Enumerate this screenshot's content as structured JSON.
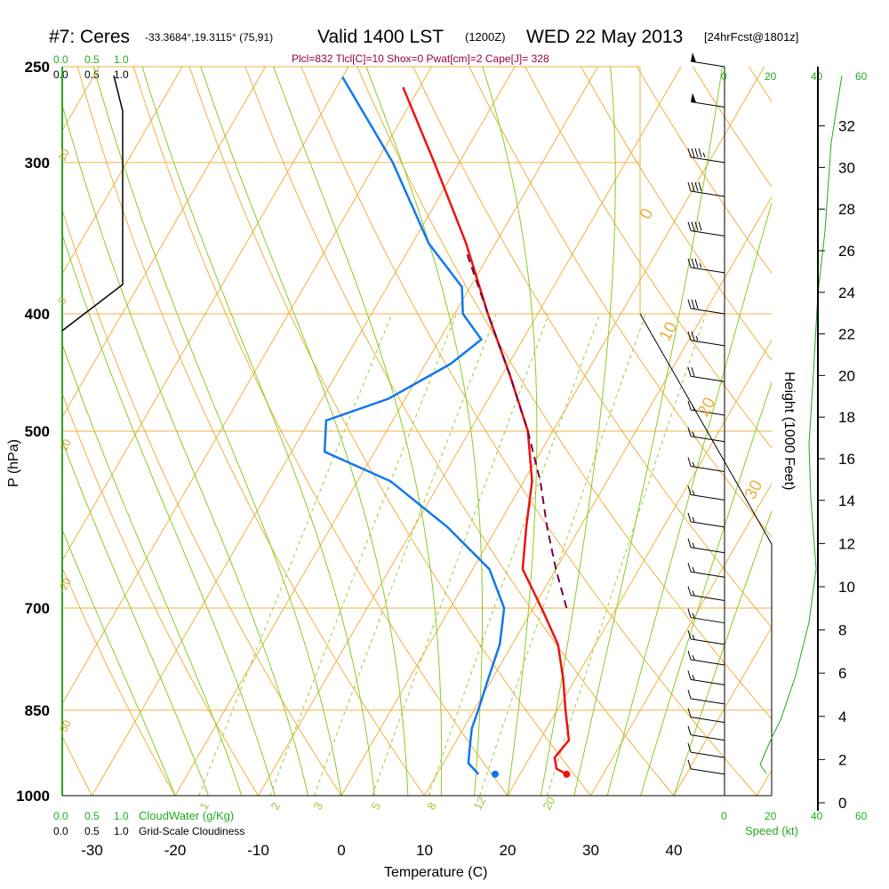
{
  "header": {
    "station": "#7: Ceres",
    "coords": "-33.3684°,19.3115° (75,91)",
    "valid": "Valid 1400 LST",
    "utc": "(1200Z)",
    "date": "WED 22 May 2013",
    "forecast": "[24hrFcst@1801z]",
    "params": "Plcl=832 Tlcl[C]=10 Shox=0 Pwat[cm]=2 Cape[J]= 328"
  },
  "cloud_scale": {
    "top_green": [
      "0.0",
      "0.5",
      "1.0"
    ],
    "top_black": [
      "0.0",
      "0.5",
      "1.0"
    ],
    "bottom_green": [
      "0.0",
      "0.5",
      "1.0"
    ],
    "bottom_black": [
      "0.0",
      "0.5",
      "1.0"
    ],
    "cloudwater_label": "CloudWater (g/Kg)",
    "cloudiness_label": "Grid-Scale Cloudiness"
  },
  "wind_speed_scale": {
    "ticks": [
      "0",
      "20",
      "40",
      "60"
    ],
    "label": "Speed (kt)"
  },
  "axes": {
    "xlabel": "Temperature (C)",
    "ylabel": "P (hPa)",
    "y2label": "Height (1000 Feet)",
    "x_ticks": [
      "-30",
      "-20",
      "-10",
      "0",
      "10",
      "20",
      "30",
      "40"
    ],
    "p_ticks": [
      "250",
      "300",
      "400",
      "500",
      "700",
      "850",
      "1000"
    ],
    "height_ticks": [
      "0",
      "2",
      "4",
      "6",
      "8",
      "10",
      "12",
      "14",
      "16",
      "18",
      "20",
      "22",
      "24",
      "26",
      "28",
      "30",
      "32"
    ]
  },
  "isotherm_labels": [
    "0",
    "10",
    "20",
    "30",
    "10",
    "0",
    "-10",
    "-20",
    "-30"
  ],
  "mixing_ratio_labels": [
    "1",
    "2",
    "3",
    "5",
    "8",
    "12",
    "20"
  ],
  "colors": {
    "temperature": "#ee1111",
    "dewpoint": "#1177ee",
    "parcel": "#770044",
    "isobar_isotherm": "#f0b040",
    "dry_adiabat": "#88cc22",
    "mixing_ratio": "#99cc33",
    "cloud": "#22aa22"
  },
  "chart_data": {
    "type": "line",
    "title": "Valid 1400 LST (1200Z) WED 22 May 2013",
    "xlabel": "Temperature (C)",
    "ylabel": "P (hPa)",
    "xlim": [
      -35,
      45
    ],
    "ylim": [
      1000,
      250
    ],
    "y_scale": "log",
    "grid": true,
    "series": [
      {
        "name": "",
        "role": "temperature",
        "points": [
          {
            "p": 960,
            "t": 25.6
          },
          {
            "p": 950,
            "t": 24.0
          },
          {
            "p": 930,
            "t": 23.0
          },
          {
            "p": 900,
            "t": 23.5
          },
          {
            "p": 850,
            "t": 21.0
          },
          {
            "p": 800,
            "t": 18.5
          },
          {
            "p": 750,
            "t": 15.5
          },
          {
            "p": 700,
            "t": 11.0
          },
          {
            "p": 650,
            "t": 6.0
          },
          {
            "p": 600,
            "t": 3.5
          },
          {
            "p": 550,
            "t": 1.0
          },
          {
            "p": 500,
            "t": -3.0
          },
          {
            "p": 450,
            "t": -9.0
          },
          {
            "p": 400,
            "t": -16.0
          },
          {
            "p": 350,
            "t": -23.5
          },
          {
            "p": 300,
            "t": -33.0
          },
          {
            "p": 260,
            "t": -42.0
          }
        ]
      },
      {
        "name": "",
        "role": "dewpoint",
        "points": [
          {
            "p": 960,
            "t": 15.0
          },
          {
            "p": 940,
            "t": 13.0
          },
          {
            "p": 910,
            "t": 12.0
          },
          {
            "p": 880,
            "t": 11.0
          },
          {
            "p": 850,
            "t": 10.5
          },
          {
            "p": 800,
            "t": 9.5
          },
          {
            "p": 750,
            "t": 8.5
          },
          {
            "p": 700,
            "t": 6.5
          },
          {
            "p": 650,
            "t": 2.0
          },
          {
            "p": 600,
            "t": -6.0
          },
          {
            "p": 550,
            "t": -16.0
          },
          {
            "p": 520,
            "t": -26.0
          },
          {
            "p": 490,
            "t": -28.0
          },
          {
            "p": 470,
            "t": -22.0
          },
          {
            "p": 440,
            "t": -17.0
          },
          {
            "p": 420,
            "t": -15.0
          },
          {
            "p": 400,
            "t": -19.0
          },
          {
            "p": 380,
            "t": -21.0
          },
          {
            "p": 350,
            "t": -28.0
          },
          {
            "p": 300,
            "t": -38.0
          },
          {
            "p": 255,
            "t": -50.0
          }
        ]
      },
      {
        "name": "",
        "role": "parcel",
        "points": [
          {
            "p": 700,
            "t": 14.0
          },
          {
            "p": 650,
            "t": 10.0
          },
          {
            "p": 600,
            "t": 6.0
          },
          {
            "p": 550,
            "t": 2.0
          },
          {
            "p": 500,
            "t": -3.0
          },
          {
            "p": 450,
            "t": -9.0
          },
          {
            "p": 400,
            "t": -16.0
          },
          {
            "p": 355,
            "t": -23.0
          }
        ]
      }
    ],
    "wind_barbs": [
      {
        "p": 250,
        "speed_kt": 50
      },
      {
        "p": 270,
        "speed_kt": 55
      },
      {
        "p": 300,
        "speed_kt": 45
      },
      {
        "p": 320,
        "speed_kt": 40
      },
      {
        "p": 345,
        "speed_kt": 40
      },
      {
        "p": 370,
        "speed_kt": 35
      },
      {
        "p": 400,
        "speed_kt": 30
      },
      {
        "p": 425,
        "speed_kt": 25
      },
      {
        "p": 455,
        "speed_kt": 20
      },
      {
        "p": 485,
        "speed_kt": 15
      },
      {
        "p": 510,
        "speed_kt": 15
      },
      {
        "p": 540,
        "speed_kt": 15
      },
      {
        "p": 570,
        "speed_kt": 15
      },
      {
        "p": 600,
        "speed_kt": 15
      },
      {
        "p": 630,
        "speed_kt": 15
      },
      {
        "p": 660,
        "speed_kt": 15
      },
      {
        "p": 690,
        "speed_kt": 15
      },
      {
        "p": 720,
        "speed_kt": 15
      },
      {
        "p": 750,
        "speed_kt": 15
      },
      {
        "p": 780,
        "speed_kt": 15
      },
      {
        "p": 810,
        "speed_kt": 15
      },
      {
        "p": 840,
        "speed_kt": 10
      },
      {
        "p": 870,
        "speed_kt": 10
      },
      {
        "p": 900,
        "speed_kt": 10
      },
      {
        "p": 930,
        "speed_kt": 10
      },
      {
        "p": 960,
        "speed_kt": 10
      }
    ]
  }
}
